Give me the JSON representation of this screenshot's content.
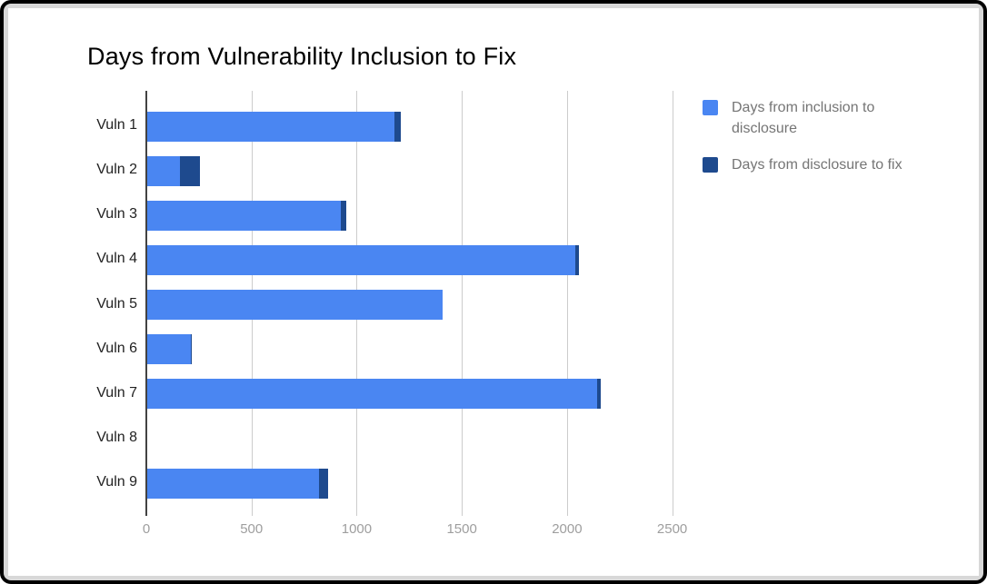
{
  "window": {
    "frame_color": "#000000",
    "mat_color": "#d8d8d8",
    "canvas_color": "#ffffff"
  },
  "chart_data": {
    "type": "bar",
    "orientation": "horizontal",
    "stacked": true,
    "title": "Days from Vulnerability Inclusion to Fix",
    "categories": [
      "Vuln 1",
      "Vuln 2",
      "Vuln 3",
      "Vuln 4",
      "Vuln 5",
      "Vuln 6",
      "Vuln 7",
      "Vuln 8",
      "Vuln 9"
    ],
    "series": [
      {
        "name": "Days from inclusion to disclosure",
        "color": "#4a86f2",
        "values": [
          1180,
          160,
          925,
          2040,
          1410,
          210,
          2145,
          0,
          820
        ]
      },
      {
        "name": "Days from disclosure to fix",
        "color": "#1e4a8e",
        "values": [
          30,
          95,
          25,
          15,
          0,
          8,
          15,
          0,
          43
        ]
      }
    ],
    "xlim": [
      0,
      2640
    ],
    "xticks": [
      0,
      500,
      1000,
      1500,
      2000,
      2500
    ],
    "grid": true,
    "legend_position": "right",
    "xlabel": "",
    "ylabel": "",
    "colors": {
      "gridline": "#cccccc",
      "baseline": "#424242",
      "tick_label": "#9e9e9e",
      "category_label": "#212121",
      "legend_text": "#757575",
      "title": "#000000"
    }
  }
}
